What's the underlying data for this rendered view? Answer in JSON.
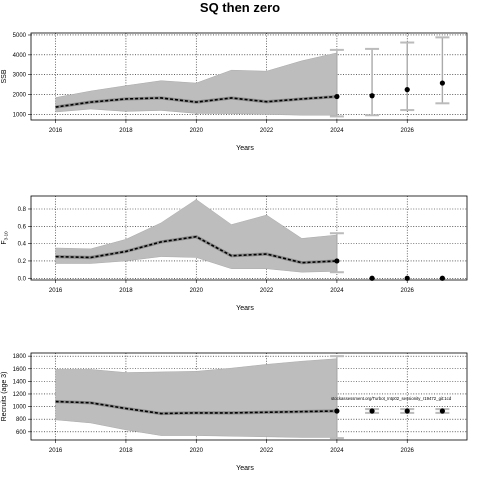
{
  "title": "SQ then zero",
  "chart_data": [
    {
      "type": "line",
      "xlabel": "Years",
      "ylabel": "SSB",
      "xlim": [
        2015.3,
        2027.7
      ],
      "ylim": [
        720,
        5100
      ],
      "xticks": [
        2016,
        2018,
        2020,
        2022,
        2024,
        2026
      ],
      "yticks": [
        1000,
        2000,
        3000,
        4000,
        5000
      ],
      "grid": true,
      "series": [
        {
          "style": "band",
          "x": [
            2016,
            2017,
            2018,
            2019,
            2020,
            2021,
            2022,
            2023,
            2024
          ],
          "lower": [
            1120,
            1270,
            1150,
            1200,
            1050,
            1040,
            1000,
            960,
            960
          ],
          "upper": [
            1850,
            2180,
            2450,
            2700,
            2580,
            3230,
            3180,
            3700,
            4100
          ]
        },
        {
          "style": "dashed-line",
          "x": [
            2016,
            2017,
            2018,
            2019,
            2020,
            2021,
            2022,
            2023,
            2024
          ],
          "values": [
            1370,
            1620,
            1780,
            1830,
            1620,
            1830,
            1640,
            1780,
            1900
          ]
        },
        {
          "style": "projection-points",
          "x": [
            2025,
            2026,
            2027
          ],
          "values": [
            1940,
            2250,
            2580
          ],
          "lower": [
            960,
            1220,
            1560
          ],
          "upper": [
            4300,
            4620,
            4880
          ]
        }
      ],
      "whisker_2024": [
        900,
        4250
      ]
    },
    {
      "type": "line",
      "xlabel": "Years",
      "ylabel": "F",
      "ylabel_sub": "3-10",
      "xlim": [
        2015.3,
        2027.7
      ],
      "ylim": [
        -0.02,
        0.95
      ],
      "xticks": [
        2016,
        2018,
        2020,
        2022,
        2024,
        2026
      ],
      "yticks": [
        "0.0",
        "0.2",
        "0.4",
        "0.6",
        "0.8"
      ],
      "grid": true,
      "series": [
        {
          "style": "band",
          "x": [
            2016,
            2017,
            2018,
            2019,
            2020,
            2021,
            2022,
            2023,
            2024
          ],
          "lower": [
            0.17,
            0.17,
            0.2,
            0.25,
            0.24,
            0.11,
            0.11,
            0.07,
            0.08
          ],
          "upper": [
            0.35,
            0.34,
            0.45,
            0.64,
            0.91,
            0.62,
            0.73,
            0.46,
            0.5
          ]
        },
        {
          "style": "dashed-line",
          "x": [
            2016,
            2017,
            2018,
            2019,
            2020,
            2021,
            2022,
            2023,
            2024
          ],
          "values": [
            0.25,
            0.24,
            0.31,
            0.42,
            0.48,
            0.26,
            0.28,
            0.18,
            0.2
          ]
        },
        {
          "style": "projection-points",
          "x": [
            2025,
            2026,
            2027
          ],
          "values": [
            0,
            0,
            0
          ],
          "lower": [
            0,
            0,
            0
          ],
          "upper": [
            0,
            0,
            0
          ]
        }
      ],
      "whisker_2024": [
        0.07,
        0.52
      ]
    },
    {
      "type": "line",
      "xlabel": "Years",
      "ylabel": "Recruits (age 3)",
      "xlim": [
        2015.3,
        2027.7
      ],
      "ylim": [
        470,
        1850
      ],
      "xticks": [
        2016,
        2018,
        2020,
        2022,
        2024,
        2026
      ],
      "yticks": [
        600,
        800,
        1000,
        1200,
        1400,
        1600,
        1800
      ],
      "grid": true,
      "annotation": "stockassessment.org/Turbot_Intp02_sessionity_r19472_git:1cd",
      "series": [
        {
          "style": "band",
          "x": [
            2016,
            2017,
            2018,
            2019,
            2020,
            2021,
            2022,
            2023,
            2024
          ],
          "lower": [
            790,
            740,
            630,
            540,
            540,
            530,
            520,
            510,
            510
          ],
          "upper": [
            1590,
            1590,
            1540,
            1550,
            1560,
            1610,
            1670,
            1720,
            1760
          ]
        },
        {
          "style": "dashed-line",
          "x": [
            2016,
            2017,
            2018,
            2019,
            2020,
            2021,
            2022,
            2023,
            2024
          ],
          "values": [
            1080,
            1060,
            970,
            890,
            900,
            900,
            910,
            920,
            930
          ]
        },
        {
          "style": "projection-points",
          "x": [
            2025,
            2026,
            2027
          ],
          "values": [
            930,
            930,
            930
          ],
          "lower": [
            900,
            900,
            900
          ],
          "upper": [
            960,
            960,
            960
          ]
        }
      ],
      "whisker_2024": [
        500,
        1800
      ]
    }
  ]
}
